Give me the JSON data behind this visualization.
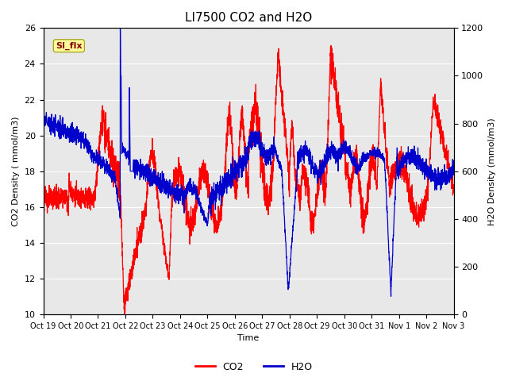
{
  "title": "LI7500 CO2 and H2O",
  "xlabel": "Time",
  "ylabel_left": "CO2 Density ( mmol/m3)",
  "ylabel_right": "H2O Density (mmol/m3)",
  "ylim_left": [
    10,
    26
  ],
  "ylim_right": [
    0,
    1200
  ],
  "yticks_left": [
    10,
    12,
    14,
    16,
    18,
    20,
    22,
    24,
    26
  ],
  "yticks_right": [
    0,
    200,
    400,
    600,
    800,
    1000,
    1200
  ],
  "xtick_labels": [
    "Oct 19",
    "Oct 20",
    "Oct 21",
    "Oct 22",
    "Oct 23",
    "Oct 24",
    "Oct 25",
    "Oct 26",
    "Oct 27",
    "Oct 28",
    "Oct 29",
    "Oct 30",
    "Oct 31",
    "Nov 1",
    "Nov 2",
    "Nov 3"
  ],
  "annotation_text": "SI_flx",
  "co2_color": "#ff0000",
  "h2o_color": "#0000cc",
  "fig_bg_color": "#ffffff",
  "plot_bg_color": "#e8e8e8",
  "grid_color": "#ffffff",
  "legend_co2": "CO2",
  "legend_h2o": "H2O",
  "title_fontsize": 11,
  "axis_fontsize": 8,
  "tick_fontsize": 8,
  "linewidth": 0.9
}
